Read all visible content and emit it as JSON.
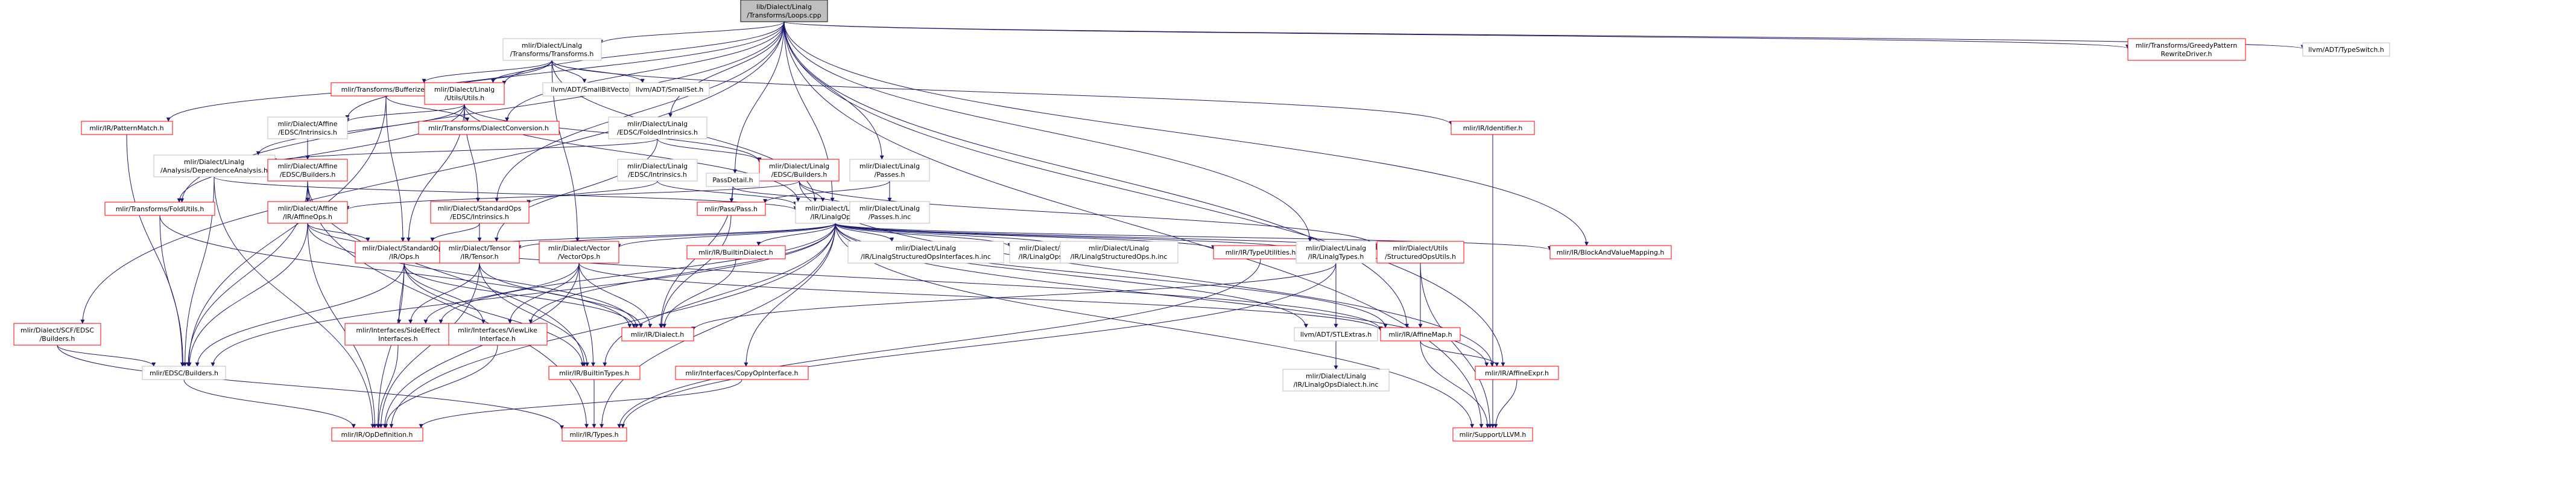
{
  "colors": {
    "edge": "#191970",
    "box_border_default": "#bfbfbf",
    "box_border_red": "#ff0000",
    "root_fill": "#bfbfbf",
    "root_border": "#000000"
  },
  "nodes": [
    {
      "id": "root",
      "lines": [
        "lib/Dialect/Linalg",
        "/Transforms/Loops.cpp"
      ],
      "style": "root"
    },
    {
      "id": "transforms_h",
      "lines": [
        "mlir/Dialect/Linalg",
        "/Transforms/Transforms.h"
      ],
      "style": "black"
    },
    {
      "id": "greedy",
      "lines": [
        "mlir/Transforms/GreedyPattern",
        "RewriteDriver.h"
      ],
      "style": "red"
    },
    {
      "id": "typeswitch",
      "lines": [
        "llvm/ADT/TypeSwitch.h"
      ],
      "style": "black"
    },
    {
      "id": "bufferize",
      "lines": [
        "mlir/Transforms/Bufferize.h"
      ],
      "style": "red"
    },
    {
      "id": "linalg_utils",
      "lines": [
        "mlir/Dialect/Linalg",
        "/Utils/Utils.h"
      ],
      "style": "red"
    },
    {
      "id": "smallbitvector",
      "lines": [
        "llvm/ADT/SmallBitVector.h"
      ],
      "style": "black"
    },
    {
      "id": "smallset",
      "lines": [
        "llvm/ADT/SmallSet.h"
      ],
      "style": "black"
    },
    {
      "id": "patternmatch",
      "lines": [
        "mlir/IR/PatternMatch.h"
      ],
      "style": "red"
    },
    {
      "id": "affine_intrinsics",
      "lines": [
        "mlir/Dialect/Affine",
        "/EDSC/Intrinsics.h"
      ],
      "style": "black"
    },
    {
      "id": "dialectconversion",
      "lines": [
        "mlir/Transforms/DialectConversion.h"
      ],
      "style": "red"
    },
    {
      "id": "folded_intrinsics",
      "lines": [
        "mlir/Dialect/Linalg",
        "/EDSC/FoldedIntrinsics.h"
      ],
      "style": "black"
    },
    {
      "id": "identifier",
      "lines": [
        "mlir/IR/Identifier.h"
      ],
      "style": "red"
    },
    {
      "id": "dependence",
      "lines": [
        "mlir/Dialect/Linalg",
        "/Analysis/DependenceAnalysis.h"
      ],
      "style": "black"
    },
    {
      "id": "affine_builders",
      "lines": [
        "mlir/Dialect/Affine",
        "/EDSC/Builders.h"
      ],
      "style": "red"
    },
    {
      "id": "linalg_intrinsics",
      "lines": [
        "mlir/Dialect/Linalg",
        "/EDSC/Intrinsics.h"
      ],
      "style": "black"
    },
    {
      "id": "linalg_builders",
      "lines": [
        "mlir/Dialect/Linalg",
        "/EDSC/Builders.h"
      ],
      "style": "red"
    },
    {
      "id": "linalg_passes_h",
      "lines": [
        "mlir/Dialect/Linalg",
        "/Passes.h"
      ],
      "style": "black"
    },
    {
      "id": "passdetail",
      "lines": [
        "PassDetail.h"
      ],
      "style": "black"
    },
    {
      "id": "foldutils",
      "lines": [
        "mlir/Transforms/FoldUtils.h"
      ],
      "style": "red"
    },
    {
      "id": "affineops",
      "lines": [
        "mlir/Dialect/Affine",
        "/IR/AffineOps.h"
      ],
      "style": "red"
    },
    {
      "id": "std_intrinsics",
      "lines": [
        "mlir/Dialect/StandardOps",
        "/EDSC/Intrinsics.h"
      ],
      "style": "red"
    },
    {
      "id": "pass_h",
      "lines": [
        "mlir/Pass/Pass.h"
      ],
      "style": "red"
    },
    {
      "id": "linalgops",
      "lines": [
        "mlir/Dialect/Linalg",
        "/IR/LinalgOps.h"
      ],
      "style": "black"
    },
    {
      "id": "passes_inc",
      "lines": [
        "mlir/Dialect/Linalg",
        "/Passes.h.inc"
      ],
      "style": "black"
    },
    {
      "id": "std_ops",
      "lines": [
        "mlir/Dialect/StandardOps",
        "/IR/Ops.h"
      ],
      "style": "red"
    },
    {
      "id": "tensor",
      "lines": [
        "mlir/Dialect/Tensor",
        "/IR/Tensor.h"
      ],
      "style": "red"
    },
    {
      "id": "vectorops",
      "lines": [
        "mlir/Dialect/Vector",
        "/VectorOps.h"
      ],
      "style": "red"
    },
    {
      "id": "builtindialect",
      "lines": [
        "mlir/IR/BuiltinDialect.h"
      ],
      "style": "red"
    },
    {
      "id": "structured_ifaces",
      "lines": [
        "mlir/Dialect/Linalg",
        "/IR/LinalgStructuredOpsInterfaces.h.inc"
      ],
      "style": "black"
    },
    {
      "id": "linalgops_inc",
      "lines": [
        "mlir/Dialect/Linalg",
        "/IR/LinalgOps.h.inc"
      ],
      "style": "black"
    },
    {
      "id": "structuredops_inc",
      "lines": [
        "mlir/Dialect/Linalg",
        "/IR/LinalgStructuredOps.h.inc"
      ],
      "style": "black"
    },
    {
      "id": "typeutilities",
      "lines": [
        "mlir/IR/TypeUtilities.h"
      ],
      "style": "red"
    },
    {
      "id": "linalgtypes",
      "lines": [
        "mlir/Dialect/Linalg",
        "/IR/LinalgTypes.h"
      ],
      "style": "black"
    },
    {
      "id": "structuredoputils",
      "lines": [
        "mlir/Dialect/Utils",
        "/StructuredOpsUtils.h"
      ],
      "style": "red"
    },
    {
      "id": "blockandvalue",
      "lines": [
        "mlir/IR/BlockAndValueMapping.h"
      ],
      "style": "red"
    },
    {
      "id": "scf_builders",
      "lines": [
        "mlir/Dialect/SCF/EDSC",
        "/Builders.h"
      ],
      "style": "red"
    },
    {
      "id": "sideeffect",
      "lines": [
        "mlir/Interfaces/SideEffect",
        "Interfaces.h"
      ],
      "style": "red"
    },
    {
      "id": "viewlike",
      "lines": [
        "mlir/Interfaces/ViewLike",
        "Interface.h"
      ],
      "style": "red"
    },
    {
      "id": "dialect_h",
      "lines": [
        "mlir/IR/Dialect.h"
      ],
      "style": "red"
    },
    {
      "id": "stlextras",
      "lines": [
        "llvm/ADT/STLExtras.h"
      ],
      "style": "black"
    },
    {
      "id": "linalgopsdialect_inc",
      "lines": [
        "mlir/Dialect/Linalg",
        "/IR/LinalgOpsDialect.h.inc"
      ],
      "style": "black"
    },
    {
      "id": "affinemap",
      "lines": [
        "mlir/IR/AffineMap.h"
      ],
      "style": "red"
    },
    {
      "id": "edsc_builders",
      "lines": [
        "mlir/EDSC/Builders.h"
      ],
      "style": "black"
    },
    {
      "id": "builtintypes",
      "lines": [
        "mlir/IR/BuiltinTypes.h"
      ],
      "style": "red"
    },
    {
      "id": "copyop",
      "lines": [
        "mlir/Interfaces/CopyOpInterface.h"
      ],
      "style": "red"
    },
    {
      "id": "affineexpr",
      "lines": [
        "mlir/IR/AffineExpr.h"
      ],
      "style": "red"
    },
    {
      "id": "opdefinition",
      "lines": [
        "mlir/IR/OpDefinition.h"
      ],
      "style": "red"
    },
    {
      "id": "types_h",
      "lines": [
        "mlir/IR/Types.h"
      ],
      "style": "red"
    },
    {
      "id": "supportllvm",
      "lines": [
        "mlir/Support/LLVM.h"
      ],
      "style": "red"
    }
  ],
  "edges": [
    [
      "root",
      "transforms_h"
    ],
    [
      "root",
      "greedy"
    ],
    [
      "root",
      "typeswitch"
    ],
    [
      "root",
      "linalg_utils"
    ],
    [
      "root",
      "folded_intrinsics"
    ],
    [
      "root",
      "linalg_passes_h"
    ],
    [
      "root",
      "passdetail"
    ],
    [
      "root",
      "linalgops"
    ],
    [
      "root",
      "foldutils"
    ],
    [
      "root",
      "std_intrinsics"
    ],
    [
      "root",
      "scf_builders"
    ],
    [
      "root",
      "linalgtypes"
    ],
    [
      "root",
      "blockandvalue"
    ],
    [
      "root",
      "affinemap"
    ],
    [
      "root",
      "affineexpr"
    ],
    [
      "root",
      "supportllvm"
    ],
    [
      "root",
      "affine_intrinsics"
    ],
    [
      "root",
      "dialectconversion"
    ],
    [
      "transforms_h",
      "bufferize"
    ],
    [
      "transforms_h",
      "linalg_utils"
    ],
    [
      "transforms_h",
      "smallbitvector"
    ],
    [
      "transforms_h",
      "smallset"
    ],
    [
      "transforms_h",
      "patternmatch"
    ],
    [
      "transforms_h",
      "identifier"
    ],
    [
      "transforms_h",
      "vectorops"
    ],
    [
      "transforms_h",
      "linalgops"
    ],
    [
      "bufferize",
      "std_ops"
    ],
    [
      "bufferize",
      "dialectconversion"
    ],
    [
      "bufferize",
      "edsc_builders"
    ],
    [
      "linalg_utils",
      "affine_intrinsics"
    ],
    [
      "linalg_utils",
      "dependence"
    ],
    [
      "linalg_utils",
      "linalg_builders"
    ],
    [
      "linalg_utils",
      "std_intrinsics"
    ],
    [
      "linalg_utils",
      "foldutils"
    ],
    [
      "linalg_utils",
      "std_ops"
    ],
    [
      "linalg_utils",
      "linalgops"
    ],
    [
      "patternmatch",
      "edsc_builders"
    ],
    [
      "affine_intrinsics",
      "affine_builders"
    ],
    [
      "folded_intrinsics",
      "linalg_builders"
    ],
    [
      "folded_intrinsics",
      "tensor"
    ],
    [
      "folded_intrinsics",
      "dependence"
    ],
    [
      "identifier",
      "supportllvm"
    ],
    [
      "dependence",
      "linalgops"
    ],
    [
      "dependence",
      "edsc_builders"
    ],
    [
      "dependence",
      "opdefinition"
    ],
    [
      "affine_builders",
      "affineops"
    ],
    [
      "affine_builders",
      "edsc_builders"
    ],
    [
      "affine_builders",
      "builtintypes"
    ],
    [
      "affine_builders",
      "types_h"
    ],
    [
      "linalg_intrinsics",
      "std_intrinsics"
    ],
    [
      "linalg_intrinsics",
      "linalgops"
    ],
    [
      "linalg_builders",
      "linalgops"
    ],
    [
      "linalg_builders",
      "affineops"
    ],
    [
      "linalg_builders",
      "structuredoputils"
    ],
    [
      "linalg_builders",
      "affineexpr"
    ],
    [
      "linalg_passes_h",
      "pass_h"
    ],
    [
      "linalg_passes_h",
      "passes_inc"
    ],
    [
      "passdetail",
      "pass_h"
    ],
    [
      "passdetail",
      "dialect_h"
    ],
    [
      "passdetail",
      "passes_inc"
    ],
    [
      "foldutils",
      "dialect_h"
    ],
    [
      "foldutils",
      "edsc_builders"
    ],
    [
      "affineops",
      "std_ops"
    ],
    [
      "affineops",
      "edsc_builders"
    ],
    [
      "affineops",
      "opdefinition"
    ],
    [
      "affineops",
      "dialect_h"
    ],
    [
      "affineops",
      "affinemap"
    ],
    [
      "std_intrinsics",
      "std_ops"
    ],
    [
      "std_intrinsics",
      "tensor"
    ],
    [
      "pass_h",
      "dialect_h"
    ],
    [
      "linalgops",
      "std_ops"
    ],
    [
      "linalgops",
      "tensor"
    ],
    [
      "linalgops",
      "vectorops"
    ],
    [
      "linalgops",
      "builtindialect"
    ],
    [
      "linalgops",
      "structured_ifaces"
    ],
    [
      "linalgops",
      "linalgops_inc"
    ],
    [
      "linalgops",
      "structuredops_inc"
    ],
    [
      "linalgops",
      "typeutilities"
    ],
    [
      "linalgops",
      "linalgtypes"
    ],
    [
      "linalgops",
      "structuredoputils"
    ],
    [
      "linalgops",
      "blockandvalue"
    ],
    [
      "linalgops",
      "sideeffect"
    ],
    [
      "linalgops",
      "viewlike"
    ],
    [
      "linalgops",
      "copyop"
    ],
    [
      "linalgops",
      "builtintypes"
    ],
    [
      "linalgops",
      "stlextras"
    ],
    [
      "linalgops",
      "affinemap"
    ],
    [
      "linalgops",
      "affineexpr"
    ],
    [
      "linalgops",
      "opdefinition"
    ],
    [
      "linalgops",
      "types_h"
    ],
    [
      "linalgops",
      "supportllvm"
    ],
    [
      "linalgops",
      "edsc_builders"
    ],
    [
      "std_ops",
      "edsc_builders"
    ],
    [
      "std_ops",
      "sideeffect"
    ],
    [
      "std_ops",
      "viewlike"
    ],
    [
      "std_ops",
      "builtintypes"
    ],
    [
      "std_ops",
      "dialect_h"
    ],
    [
      "std_ops",
      "opdefinition"
    ],
    [
      "tensor",
      "sideeffect"
    ],
    [
      "tensor",
      "builtintypes"
    ],
    [
      "tensor",
      "dialect_h"
    ],
    [
      "tensor",
      "opdefinition"
    ],
    [
      "vectorops",
      "sideeffect"
    ],
    [
      "vectorops",
      "viewlike"
    ],
    [
      "vectorops",
      "builtintypes"
    ],
    [
      "vectorops",
      "dialect_h"
    ],
    [
      "vectorops",
      "affinemap"
    ],
    [
      "vectorops",
      "opdefinition"
    ],
    [
      "builtindialect",
      "dialect_h"
    ],
    [
      "typeutilities",
      "types_h"
    ],
    [
      "linalgtypes",
      "dialect_h"
    ],
    [
      "linalgtypes",
      "stlextras"
    ],
    [
      "linalgtypes",
      "linalgopsdialect_inc"
    ],
    [
      "linalgtypes",
      "types_h"
    ],
    [
      "structuredoputils",
      "affinemap"
    ],
    [
      "structuredoputils",
      "supportllvm"
    ],
    [
      "scf_builders",
      "edsc_builders"
    ],
    [
      "scf_builders",
      "types_h"
    ],
    [
      "sideeffect",
      "opdefinition"
    ],
    [
      "viewlike",
      "opdefinition"
    ],
    [
      "affinemap",
      "affineexpr"
    ],
    [
      "affinemap",
      "supportllvm"
    ],
    [
      "edsc_builders",
      "opdefinition"
    ],
    [
      "builtintypes",
      "types_h"
    ],
    [
      "copyop",
      "opdefinition"
    ],
    [
      "affineexpr",
      "supportllvm"
    ]
  ]
}
